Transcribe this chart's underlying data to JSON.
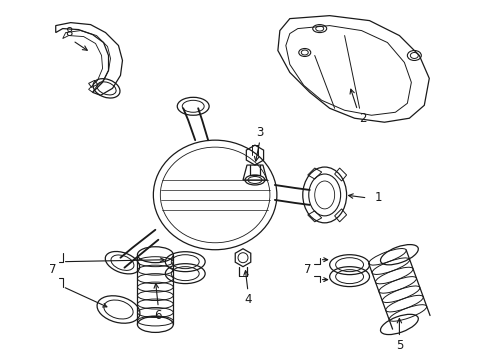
{
  "bg_color": "#ffffff",
  "line_color": "#1a1a1a",
  "fig_width": 4.89,
  "fig_height": 3.6,
  "dpi": 100,
  "lw": 0.9,
  "label_fontsize": 8.5
}
